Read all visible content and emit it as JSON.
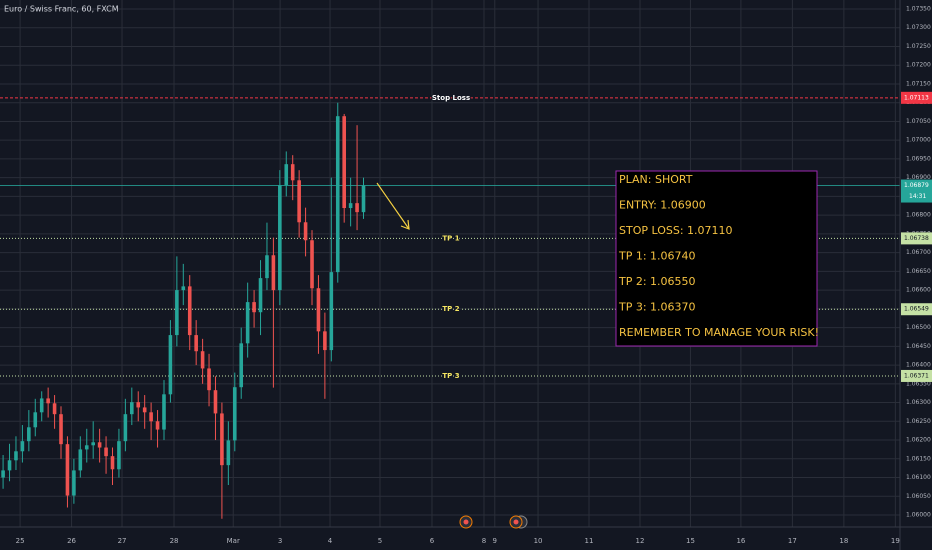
{
  "chart_data": {
    "type": "candlestick",
    "title": "Euro / Swiss Franc, 60, FXCM",
    "up_color": "#26a69a",
    "down_color": "#ef5350",
    "grid": true,
    "xlim": [
      -0.39,
      17.09
    ],
    "xticks": [
      {
        "value": 0,
        "label": "25"
      },
      {
        "value": 1,
        "label": "26"
      },
      {
        "value": 1.98,
        "label": "27"
      },
      {
        "value": 2.99,
        "label": "28"
      },
      {
        "value": 4.14,
        "label": "Mar"
      },
      {
        "value": 5.05,
        "label": "3"
      },
      {
        "value": 6.02,
        "label": "4"
      },
      {
        "value": 6.99,
        "label": "5"
      },
      {
        "value": 8.0,
        "label": "6"
      },
      {
        "value": 9.01,
        "label": "8"
      },
      {
        "value": 9.22,
        "label": "9"
      },
      {
        "value": 10.06,
        "label": "10"
      },
      {
        "value": 11.05,
        "label": "11"
      },
      {
        "value": 12.04,
        "label": "12"
      },
      {
        "value": 13.02,
        "label": "15"
      },
      {
        "value": 14.0,
        "label": "16"
      },
      {
        "value": 15.0,
        "label": "17"
      },
      {
        "value": 16.0,
        "label": "18"
      },
      {
        "value": 17.0,
        "label": "19"
      }
    ],
    "ylim": [
      1.05968,
      1.07374
    ],
    "yticks": [
      {
        "value": 1.06,
        "label": "1.06000"
      },
      {
        "value": 1.0605,
        "label": "1.06050"
      },
      {
        "value": 1.061,
        "label": "1.06100"
      },
      {
        "value": 1.0615,
        "label": "1.06150"
      },
      {
        "value": 1.062,
        "label": "1.06200"
      },
      {
        "value": 1.0625,
        "label": "1.06250"
      },
      {
        "value": 1.063,
        "label": "1.06300"
      },
      {
        "value": 1.0635,
        "label": "1.06350"
      },
      {
        "value": 1.064,
        "label": "1.06400"
      },
      {
        "value": 1.0645,
        "label": "1.06450"
      },
      {
        "value": 1.065,
        "label": "1.06500"
      },
      {
        "value": 1.0655,
        "label": "1.06550"
      },
      {
        "value": 1.066,
        "label": "1.06600"
      },
      {
        "value": 1.0665,
        "label": "1.06650"
      },
      {
        "value": 1.067,
        "label": "1.06700"
      },
      {
        "value": 1.0675,
        "label": "1.06750"
      },
      {
        "value": 1.068,
        "label": "1.06800"
      },
      {
        "value": 1.0685,
        "label": "1.06850"
      },
      {
        "value": 1.069,
        "label": "1.06900"
      },
      {
        "value": 1.0695,
        "label": "1.06950"
      },
      {
        "value": 1.07,
        "label": "1.07000"
      },
      {
        "value": 1.0705,
        "label": "1.07050"
      },
      {
        "value": 1.071,
        "label": "1.07100"
      },
      {
        "value": 1.0715,
        "label": "1.07150"
      },
      {
        "value": 1.072,
        "label": "1.07200"
      },
      {
        "value": 1.0725,
        "label": "1.07250"
      },
      {
        "value": 1.073,
        "label": "1.07300"
      },
      {
        "value": 1.0735,
        "label": "1.07350"
      }
    ],
    "x": [
      -0.33,
      -0.205,
      -0.08,
      0.045,
      0.17,
      0.295,
      0.42,
      0.545,
      0.67,
      0.795,
      0.92,
      1.045,
      1.17,
      1.295,
      1.42,
      1.545,
      1.67,
      1.795,
      1.92,
      2.045,
      2.17,
      2.295,
      2.42,
      2.545,
      2.67,
      2.795,
      2.92,
      3.045,
      3.17,
      3.295,
      3.42,
      3.545,
      3.67,
      3.795,
      3.92,
      4.045,
      4.17,
      4.295,
      4.42,
      4.545,
      4.67,
      4.795,
      4.92,
      5.045,
      5.17,
      5.295,
      5.42,
      5.545,
      5.67,
      5.795,
      5.92,
      6.045,
      6.17,
      6.295,
      6.42,
      6.545,
      6.67
    ],
    "open": [
      1.061,
      1.06119,
      1.06146,
      1.0617,
      1.06197,
      1.06234,
      1.06274,
      1.06311,
      1.06298,
      1.06269,
      1.06189,
      1.06052,
      1.06119,
      1.06175,
      1.06186,
      1.06194,
      1.0618,
      1.06157,
      1.06122,
      1.06197,
      1.06269,
      1.06301,
      1.06287,
      1.06274,
      1.0625,
      1.06228,
      1.06322,
      1.0648,
      1.066,
      1.0661,
      1.0648,
      1.06437,
      1.06391,
      1.06333,
      1.06271,
      1.06133,
      1.06199,
      1.06341,
      1.06458,
      1.06568,
      1.06541,
      1.06632,
      1.06693,
      1.066,
      1.0688,
      1.06936,
      1.06893,
      1.06781,
      1.06733,
      1.06605,
      1.0649,
      1.0644,
      1.06648,
      1.07064,
      1.06819,
      1.06832,
      1.06808
    ],
    "high": [
      1.0616,
      1.0619,
      1.0621,
      1.0624,
      1.0628,
      1.0631,
      1.0633,
      1.0634,
      1.0632,
      1.0629,
      1.0621,
      1.0615,
      1.0621,
      1.0623,
      1.0625,
      1.0623,
      1.0621,
      1.0618,
      1.0623,
      1.0631,
      1.0634,
      1.0633,
      1.0632,
      1.063,
      1.0628,
      1.0636,
      1.0652,
      1.0669,
      1.0667,
      1.0664,
      1.0652,
      1.0647,
      1.0643,
      1.0637,
      1.063,
      1.0625,
      1.0638,
      1.065,
      1.0662,
      1.066,
      1.0668,
      1.0678,
      1.0674,
      1.0692,
      1.0697,
      1.0696,
      1.0692,
      1.0682,
      1.0676,
      1.0664,
      1.0654,
      1.069,
      1.071,
      1.0707,
      1.069,
      1.0704,
      1.069
    ],
    "low": [
      1.0607,
      1.0609,
      1.0612,
      1.0614,
      1.0617,
      1.0621,
      1.0625,
      1.0626,
      1.0623,
      1.0615,
      1.0602,
      1.0603,
      1.061,
      1.0614,
      1.0615,
      1.0614,
      1.0611,
      1.0608,
      1.061,
      1.0617,
      1.0624,
      1.0625,
      1.0623,
      1.062,
      1.0618,
      1.062,
      1.063,
      1.0645,
      1.0656,
      1.0644,
      1.064,
      1.0635,
      1.0629,
      1.062,
      1.0599,
      1.0608,
      1.0617,
      1.0631,
      1.0642,
      1.065,
      1.0648,
      1.066,
      1.0634,
      1.0656,
      1.0685,
      1.0684,
      1.0674,
      1.0669,
      1.0656,
      1.0643,
      1.0631,
      1.0641,
      1.0662,
      1.0678,
      1.0677,
      1.0676,
      1.0679
    ],
    "close": [
      1.06119,
      1.06146,
      1.0617,
      1.06197,
      1.06234,
      1.06274,
      1.06311,
      1.06298,
      1.06269,
      1.06189,
      1.06052,
      1.06119,
      1.06175,
      1.06186,
      1.06194,
      1.0618,
      1.06157,
      1.06122,
      1.06197,
      1.06269,
      1.06301,
      1.06287,
      1.06274,
      1.0625,
      1.06228,
      1.06322,
      1.0648,
      1.066,
      1.0661,
      1.0648,
      1.06437,
      1.06391,
      1.06333,
      1.06271,
      1.06133,
      1.06199,
      1.06341,
      1.06458,
      1.06568,
      1.06541,
      1.06632,
      1.06693,
      1.066,
      1.0688,
      1.06936,
      1.06893,
      1.06781,
      1.06733,
      1.06605,
      1.0649,
      1.0644,
      1.06648,
      1.07064,
      1.06819,
      1.06832,
      1.06808,
      1.06879
    ],
    "levels": {
      "names": [
        "Stop Loss",
        "TP 1",
        "TP 2",
        "TP 3"
      ],
      "values": [
        1.07113,
        1.06738,
        1.06549,
        1.06371
      ],
      "value_labels": [
        "1.07113",
        "1.06738",
        "1.06549",
        "1.06371"
      ],
      "colors": [
        "#f23645",
        "#c5e1a5",
        "#c5e1a5",
        "#c5e1a5"
      ]
    },
    "last_price": 1.06879,
    "last_price_label": "1.06879",
    "countdown": "14:31",
    "plan": [
      "PLAN: SHORT",
      "ENTRY: 1.06900",
      "STOP LOSS: 1.07110",
      "TP 1: 1.06740",
      "TP 2: 1.06550",
      "TP 3: 1.06370",
      "REMEMBER TO MANAGE YOUR RISK!"
    ]
  }
}
